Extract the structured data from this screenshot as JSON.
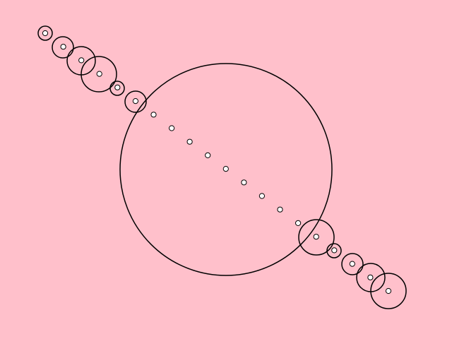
{
  "background_color": "#ffc0cb",
  "stroke_color": "#000000",
  "dot_fill_color": "#ffffff",
  "figure": {
    "big_circle_count": 1,
    "point_count": 20,
    "ring_count": 11
  }
}
